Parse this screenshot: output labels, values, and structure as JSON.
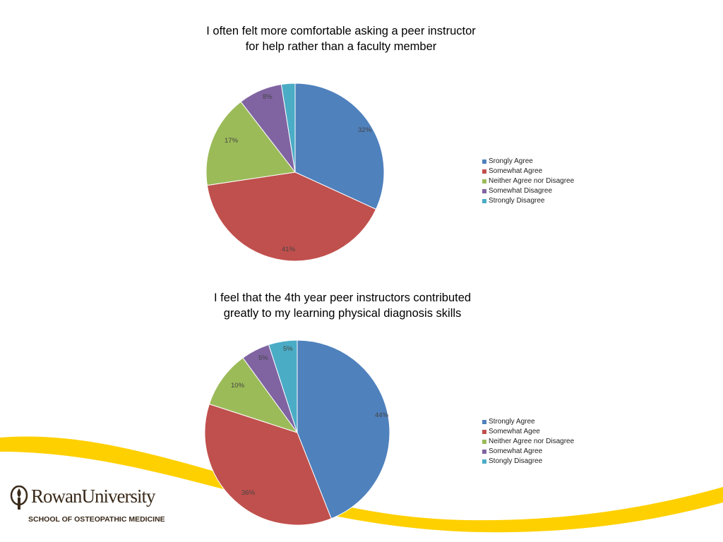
{
  "chart_data": [
    {
      "type": "pie",
      "title_lines": [
        "I often felt more comfortable asking a peer instructor",
        "for help rather than a faculty member"
      ],
      "categories": [
        "Strongly Agree",
        "Somewhat Agree",
        "Neither Agree nor Disagree",
        "Somewhat Disagree",
        "Strongly Disagree"
      ],
      "legend_labels": [
        "Srongly Agree",
        "Somewhat Agree",
        "Neither Agree nor Disagree",
        "Somewhat Disagree",
        "Strongly Disagree"
      ],
      "values": [
        32,
        41,
        17,
        8,
        2.5
      ],
      "data_labels": [
        "32%",
        "41%",
        "17%",
        "8%",
        ""
      ],
      "colors": [
        "#4f81bd",
        "#c0504d",
        "#9bbb59",
        "#8064a2",
        "#4bacc6"
      ],
      "legend_position": "right"
    },
    {
      "type": "pie",
      "title_lines": [
        "I feel that the 4th year peer instructors contributed",
        "greatly to my learning physical diagnosis skills"
      ],
      "categories": [
        "Strongly Agree",
        "Somewhat Agree",
        "Neither Agree nor Disagree",
        "Somewhat Agree",
        "Strongly Disagree"
      ],
      "legend_labels": [
        "Strongly Agree",
        "Somewhat Agee",
        "Neither Agree nor Disagree",
        "Somewhat Agree",
        "Stongly Disagree"
      ],
      "values": [
        44,
        36,
        10,
        5,
        5
      ],
      "data_labels": [
        "44%",
        "36%",
        "10%",
        "5%",
        "5%"
      ],
      "colors": [
        "#4f81bd",
        "#c0504d",
        "#9bbb59",
        "#8064a2",
        "#4bacc6"
      ],
      "legend_position": "right"
    }
  ],
  "branding": {
    "name": "RowanUniversity",
    "school": "SCHOOL OF OSTEOPATHIC MEDICINE",
    "accent_color": "#ffd000",
    "logo_color": "#3a2a1a",
    "logo_icon": "torch-icon"
  }
}
